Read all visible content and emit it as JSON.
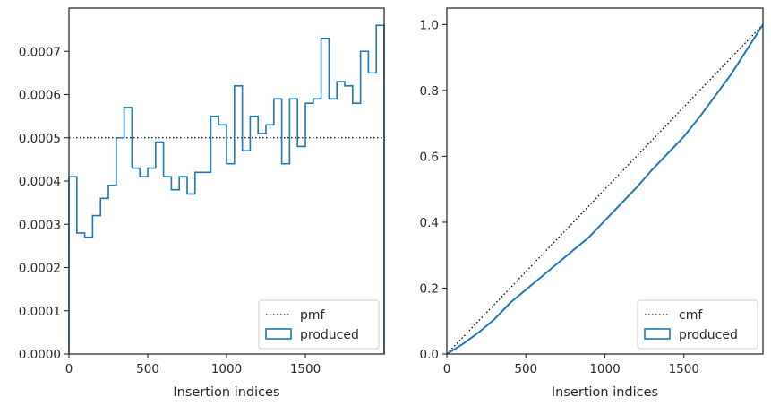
{
  "chart_data": [
    {
      "type": "histogram-step",
      "xlabel": "Insertion indices",
      "xlim": [
        0,
        2000
      ],
      "ylim": [
        0,
        0.0008
      ],
      "xticks": [
        0,
        500,
        1000,
        1500
      ],
      "xtick_labels": [
        "0",
        "500",
        "1000",
        "1500"
      ],
      "yticks": [
        0,
        0.0001,
        0.0002,
        0.0003,
        0.0004,
        0.0005,
        0.0006,
        0.0007
      ],
      "ytick_labels": [
        "0.0000",
        "0.0001",
        "0.0002",
        "0.0003",
        "0.0004",
        "0.0005",
        "0.0006",
        "0.0007"
      ],
      "bin_width": 50,
      "legend_position": "lower right",
      "legend": [
        "pmf",
        "produced"
      ],
      "series": [
        {
          "name": "pmf",
          "style": "dotted",
          "color": "#000000",
          "x": [
            0,
            2000
          ],
          "y": [
            0.0005,
            0.0005
          ]
        },
        {
          "name": "produced",
          "style": "step",
          "color": "#1f77b4",
          "bin_edges_start": 0,
          "values": [
            0.00041,
            0.00028,
            0.00027,
            0.00032,
            0.00036,
            0.00039,
            0.0005,
            0.00057,
            0.00043,
            0.00041,
            0.00043,
            0.00049,
            0.00041,
            0.00038,
            0.00041,
            0.00037,
            0.00042,
            0.00042,
            0.00055,
            0.00053,
            0.00044,
            0.00062,
            0.00047,
            0.00055,
            0.00051,
            0.00053,
            0.00059,
            0.00044,
            0.00059,
            0.00048,
            0.00058,
            0.00059,
            0.00073,
            0.00059,
            0.00063,
            0.00062,
            0.00058,
            0.0007,
            0.00065,
            0.00076
          ]
        }
      ]
    },
    {
      "type": "line",
      "xlabel": "Insertion indices",
      "xlim": [
        0,
        2000
      ],
      "ylim": [
        0,
        1.05
      ],
      "xticks": [
        0,
        500,
        1000,
        1500
      ],
      "xtick_labels": [
        "0",
        "500",
        "1000",
        "1500"
      ],
      "yticks": [
        0,
        0.2,
        0.4,
        0.6,
        0.8,
        1.0
      ],
      "ytick_labels": [
        "0.0",
        "0.2",
        "0.4",
        "0.6",
        "0.8",
        "1.0"
      ],
      "legend_position": "lower right",
      "legend": [
        "cmf",
        "produced"
      ],
      "series": [
        {
          "name": "cmf",
          "style": "dotted",
          "color": "#000000",
          "x": [
            0,
            2000
          ],
          "y": [
            0,
            1.0
          ]
        },
        {
          "name": "produced",
          "style": "solid",
          "color": "#1f77b4",
          "x": [
            0,
            100,
            200,
            300,
            400,
            500,
            600,
            700,
            800,
            900,
            1000,
            1100,
            1200,
            1300,
            1400,
            1500,
            1600,
            1700,
            1800,
            1900,
            2000
          ],
          "y": [
            0,
            0.03,
            0.065,
            0.105,
            0.155,
            0.195,
            0.235,
            0.275,
            0.315,
            0.355,
            0.405,
            0.455,
            0.505,
            0.56,
            0.61,
            0.66,
            0.72,
            0.785,
            0.85,
            0.925,
            1.0
          ]
        }
      ]
    }
  ]
}
